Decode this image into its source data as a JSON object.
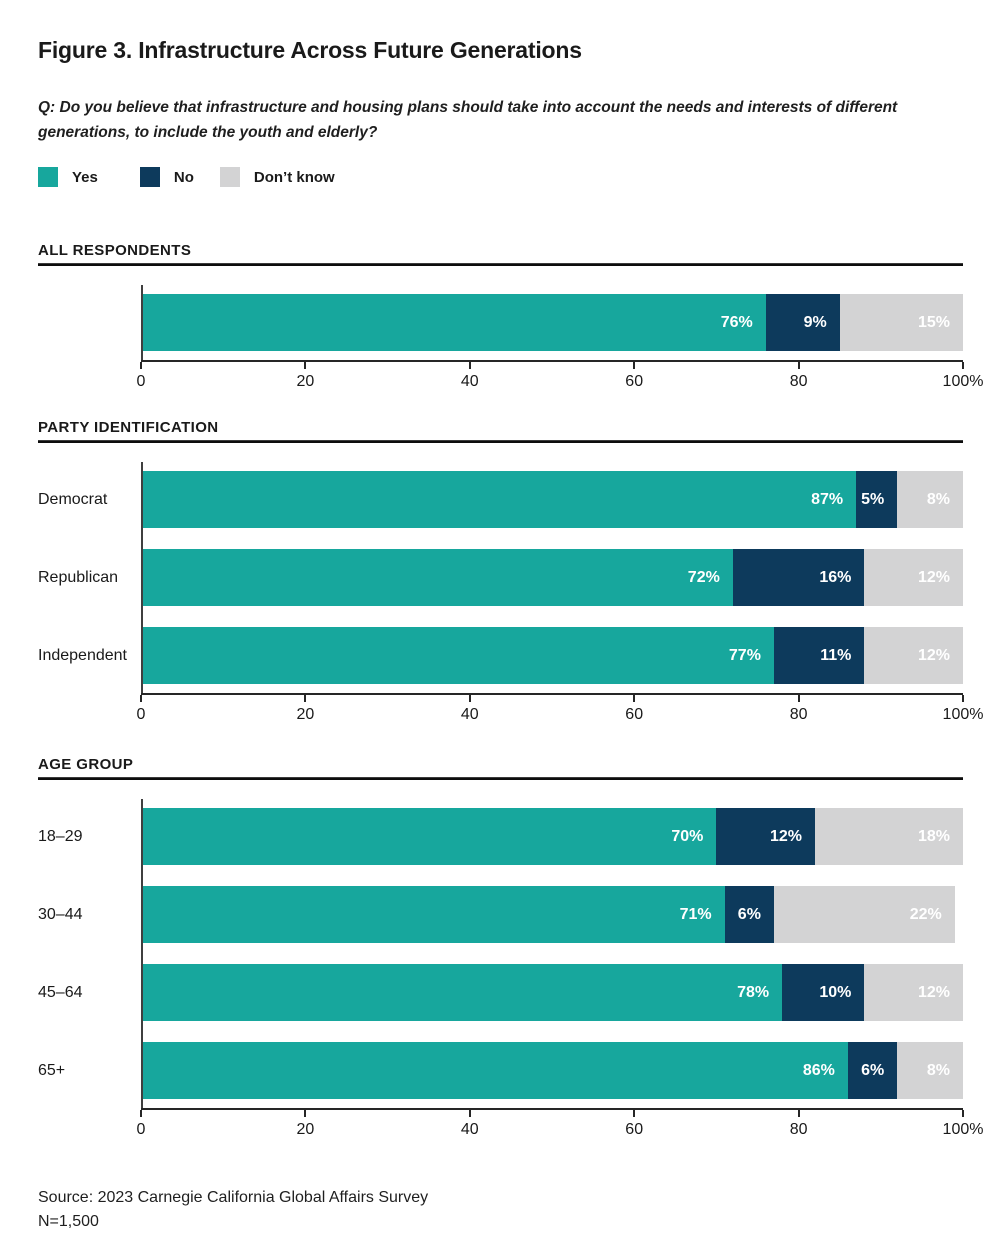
{
  "page": {
    "title": "Figure 3. Infrastructure Across Future Generations",
    "question": "Q: Do you believe that infrastructure and housing plans should take into account the needs and interests of different\ngenerations, to include the youth and elderly?",
    "source_line1": "Source: 2023 Carnegie California Global Affairs Survey",
    "source_line2": "N=1,500"
  },
  "colors": {
    "yes": "#17A79D",
    "no": "#0D3A5C",
    "dont_know": "#D3D3D4",
    "axis": "#262626",
    "text": "#1a1a1a"
  },
  "legend": {
    "items": [
      {
        "label": "Yes",
        "color": "#17A79D"
      },
      {
        "label": "No",
        "color": "#0D3A5C"
      },
      {
        "label": "Don’t know",
        "color": "#D3D3D4"
      }
    ]
  },
  "chart_data": [
    {
      "type": "bar",
      "stacked": true,
      "orientation": "horizontal",
      "section_title": "ALL RESPONDENTS",
      "categories": [
        ""
      ],
      "series": [
        {
          "name": "Yes",
          "color": "#17A79D",
          "values": [
            76
          ]
        },
        {
          "name": "No",
          "color": "#0D3A5C",
          "values": [
            9
          ]
        },
        {
          "name": "Don't know",
          "color": "#D3D3D4",
          "values": [
            15
          ]
        }
      ],
      "value_suffix": "%",
      "xlim": [
        0,
        100
      ],
      "ticks": [
        {
          "pos": 0,
          "label": "0"
        },
        {
          "pos": 20,
          "label": "20"
        },
        {
          "pos": 40,
          "label": "40"
        },
        {
          "pos": 60,
          "label": "60"
        },
        {
          "pos": 80,
          "label": "80"
        },
        {
          "pos": 100,
          "label": "100%"
        }
      ]
    },
    {
      "type": "bar",
      "stacked": true,
      "orientation": "horizontal",
      "section_title": "PARTY IDENTIFICATION",
      "categories": [
        "Democrat",
        "Republican",
        "Independent"
      ],
      "series": [
        {
          "name": "Yes",
          "color": "#17A79D",
          "values": [
            87,
            72,
            77
          ]
        },
        {
          "name": "No",
          "color": "#0D3A5C",
          "values": [
            5,
            16,
            11
          ]
        },
        {
          "name": "Don't know",
          "color": "#D3D3D4",
          "values": [
            8,
            12,
            12
          ]
        }
      ],
      "value_suffix": "%",
      "xlim": [
        0,
        100
      ],
      "ticks": [
        {
          "pos": 0,
          "label": "0"
        },
        {
          "pos": 20,
          "label": "20"
        },
        {
          "pos": 40,
          "label": "40"
        },
        {
          "pos": 60,
          "label": "60"
        },
        {
          "pos": 80,
          "label": "80"
        },
        {
          "pos": 100,
          "label": "100%"
        }
      ]
    },
    {
      "type": "bar",
      "stacked": true,
      "orientation": "horizontal",
      "section_title": "AGE GROUP",
      "categories": [
        "18–29",
        "30–44",
        "45–64",
        "65+"
      ],
      "series": [
        {
          "name": "Yes",
          "color": "#17A79D",
          "values": [
            70,
            71,
            78,
            86
          ]
        },
        {
          "name": "No",
          "color": "#0D3A5C",
          "values": [
            12,
            6,
            10,
            6
          ]
        },
        {
          "name": "Don't know",
          "color": "#D3D3D4",
          "values": [
            18,
            22,
            12,
            8
          ]
        }
      ],
      "value_suffix": "%",
      "xlim": [
        0,
        100
      ],
      "ticks": [
        {
          "pos": 0,
          "label": "0"
        },
        {
          "pos": 20,
          "label": "20"
        },
        {
          "pos": 40,
          "label": "40"
        },
        {
          "pos": 60,
          "label": "60"
        },
        {
          "pos": 80,
          "label": "80"
        },
        {
          "pos": 100,
          "label": "100%"
        }
      ]
    }
  ]
}
